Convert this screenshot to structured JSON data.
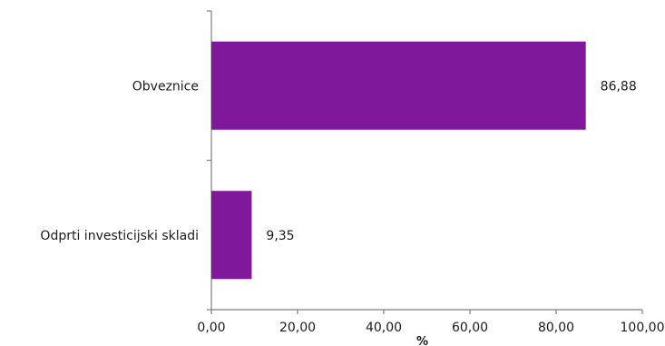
{
  "chart_data": {
    "type": "bar",
    "orientation": "horizontal",
    "title": "",
    "xlabel": "%",
    "ylabel": "",
    "xlim": [
      0,
      100
    ],
    "x_ticks": [
      0,
      20,
      40,
      60,
      80,
      100
    ],
    "x_tick_labels": [
      "0,00",
      "20,00",
      "40,00",
      "60,00",
      "80,00",
      "100,00"
    ],
    "categories": [
      "Obveznice",
      "Odprti investicijski skladi"
    ],
    "values": [
      86.88,
      9.35
    ],
    "value_labels": [
      "86,88",
      "9,35"
    ],
    "bar_color": "#7f189b",
    "axis_color": "#7f7f7f",
    "grid": false,
    "legend": "none"
  }
}
